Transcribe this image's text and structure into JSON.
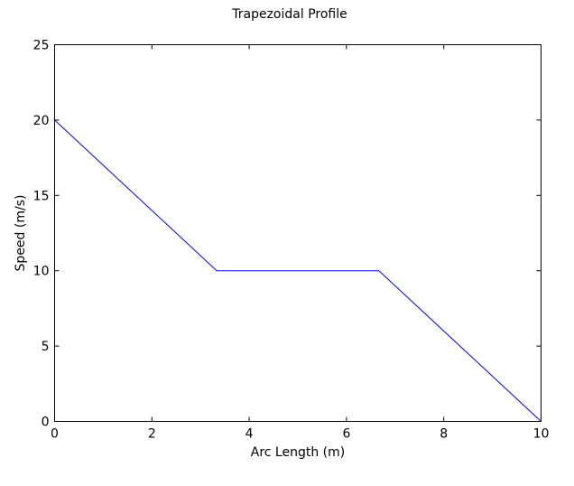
{
  "chart_data": {
    "type": "line",
    "title": "Trapezoidal Profile",
    "xlabel": "Arc Length (m)",
    "ylabel": "Speed (m/s)",
    "xlim": [
      0,
      10
    ],
    "ylim": [
      0,
      25
    ],
    "xticks": [
      0,
      2,
      4,
      6,
      8,
      10
    ],
    "yticks": [
      0,
      5,
      10,
      15,
      20,
      25
    ],
    "grid": false,
    "series": [
      {
        "color": "#0000ff",
        "x": [
          0,
          3.333,
          6.667,
          10
        ],
        "y": [
          20,
          10,
          10,
          0
        ]
      }
    ]
  }
}
